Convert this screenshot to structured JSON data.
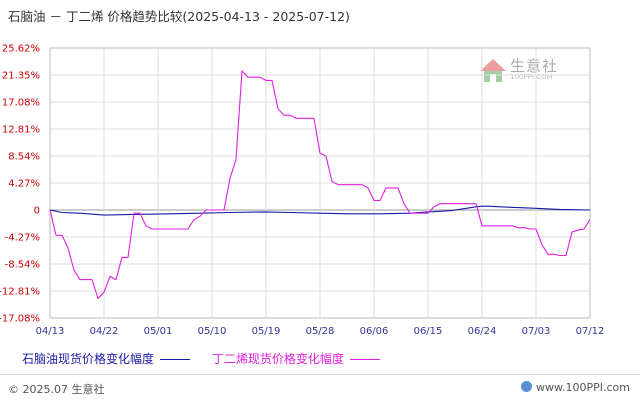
{
  "title": "石脑油 － 丁二烯  价格趋势比较(2025-04-13 - 2025-07-12)",
  "watermark": {
    "text": "生意社",
    "url": "100PPI.COM"
  },
  "footer": {
    "left": "© 2025.07 生意社",
    "right": "www.100PPI.com"
  },
  "colors": {
    "naphtha": "#1a1aa6",
    "butadiene": "#e020e0",
    "grid": "#dddddd",
    "ytick": "#cc0000",
    "xtick": "#333399"
  },
  "chart_data": {
    "type": "line",
    "ylim": [
      -17.08,
      25.62
    ],
    "yticks": [
      25.62,
      21.35,
      17.08,
      12.81,
      8.54,
      4.27,
      0,
      -4.27,
      -8.54,
      -12.81,
      -17.08
    ],
    "ytick_labels": [
      "25.62%",
      "21.35%",
      "17.08%",
      "12.81%",
      "8.54%",
      "4.27%",
      "0",
      "-4.27%",
      "-8.54%",
      "-12.81%",
      "-17.08%"
    ],
    "x_labels": [
      "04/13",
      "04/22",
      "05/01",
      "05/10",
      "05/19",
      "05/28",
      "06/06",
      "06/15",
      "06/24",
      "07/03",
      "07/12"
    ],
    "x_label_days": [
      0,
      9,
      18,
      27,
      36,
      45,
      54,
      63,
      72,
      81,
      90
    ],
    "grid": true,
    "legend_position": "bottom",
    "series": [
      {
        "name": "石脑油现货价格变化幅度",
        "color": "#1a1aa6",
        "x": [
          0,
          2,
          5,
          9,
          14,
          20,
          25,
          30,
          36,
          40,
          45,
          50,
          55,
          60,
          63,
          65,
          67,
          69,
          71,
          72,
          73,
          75,
          80,
          85,
          90
        ],
        "y": [
          0,
          -0.4,
          -0.5,
          -0.8,
          -0.7,
          -0.6,
          -0.5,
          -0.4,
          -0.3,
          -0.4,
          -0.5,
          -0.6,
          -0.6,
          -0.5,
          -0.3,
          -0.2,
          -0.1,
          0.2,
          0.5,
          0.6,
          0.6,
          0.5,
          0.3,
          0.1,
          0.0
        ]
      },
      {
        "name": "丁二烯现货价格变化幅度",
        "color": "#e020e0",
        "x": [
          0,
          1,
          2,
          3,
          4,
          5,
          6,
          7,
          8,
          9,
          10,
          11,
          12,
          13,
          14,
          15,
          16,
          17,
          18,
          19,
          20,
          21,
          22,
          23,
          24,
          25,
          26,
          27,
          28,
          29,
          30,
          31,
          32,
          33,
          34,
          35,
          36,
          37,
          38,
          39,
          40,
          41,
          42,
          43,
          44,
          45,
          46,
          47,
          48,
          49,
          50,
          51,
          52,
          53,
          54,
          55,
          56,
          57,
          58,
          59,
          60,
          61,
          62,
          63,
          64,
          65,
          66,
          67,
          68,
          69,
          70,
          71,
          72,
          73,
          74,
          75,
          76,
          77,
          78,
          79,
          80,
          81,
          82,
          83,
          84,
          85,
          86,
          87,
          88,
          89,
          90
        ],
        "y": [
          0,
          -4.0,
          -4.0,
          -6.0,
          -9.5,
          -11.0,
          -11.0,
          -11.0,
          -14.0,
          -13.0,
          -10.5,
          -11.0,
          -7.5,
          -7.5,
          -0.5,
          -0.5,
          -2.5,
          -3.0,
          -3.0,
          -3.0,
          -3.0,
          -3.0,
          -3.0,
          -3.0,
          -1.5,
          -1.0,
          0,
          0,
          0,
          0,
          5.0,
          8.0,
          22.0,
          21.0,
          21.0,
          21.0,
          20.5,
          20.5,
          16.0,
          15.0,
          15.0,
          14.5,
          14.5,
          14.5,
          14.5,
          9.0,
          8.5,
          4.5,
          4.0,
          4.0,
          4.0,
          4.0,
          4.0,
          3.5,
          1.5,
          1.5,
          3.5,
          3.5,
          3.5,
          1.0,
          -0.5,
          -0.5,
          -0.5,
          -0.5,
          0.5,
          1.0,
          1.0,
          1.0,
          1.0,
          1.0,
          1.0,
          1.0,
          -2.5,
          -2.5,
          -2.5,
          -2.5,
          -2.5,
          -2.5,
          -2.8,
          -2.8,
          -3.0,
          -3.0,
          -5.5,
          -7.0,
          -7.0,
          -7.2,
          -7.2,
          -3.5,
          -3.2,
          -3.0,
          -1.5
        ]
      }
    ]
  }
}
